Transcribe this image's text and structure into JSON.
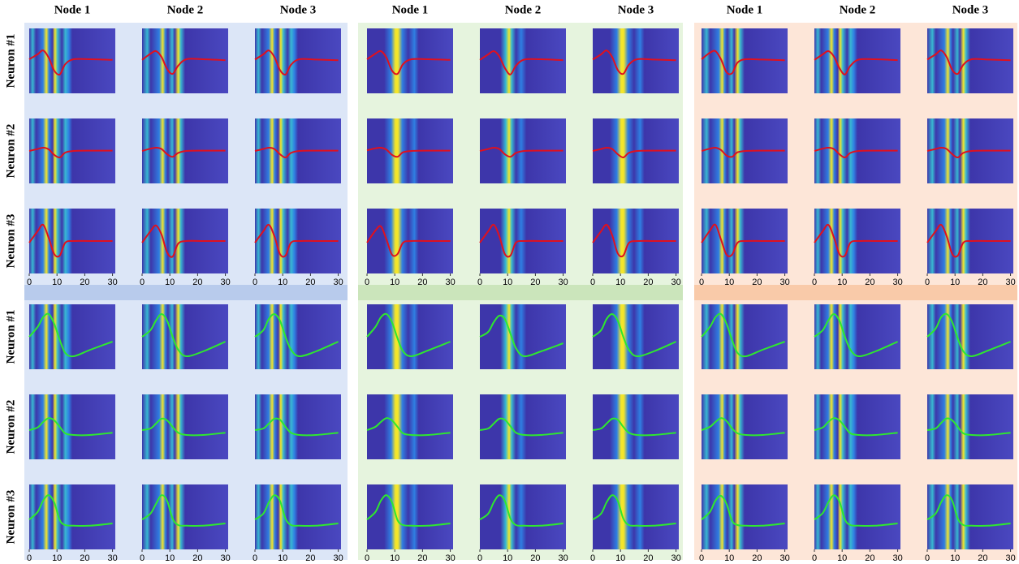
{
  "chart_data": {
    "type": "line",
    "headers": [
      "Node 1",
      "Node 2",
      "Node 3",
      "Node 1",
      "Node 2",
      "Node 3",
      "Node 1",
      "Node 2",
      "Node 3"
    ],
    "x": [
      0,
      3,
      5,
      7,
      9,
      11,
      13,
      16,
      22,
      30
    ],
    "xlim": [
      0,
      31
    ],
    "xticks": [
      0,
      10,
      20,
      30
    ],
    "ylim": [
      -1,
      1
    ],
    "blocks": [
      {
        "color": "#e0101e",
        "rows": [
          {
            "label": "Neuron #1",
            "series": [
              {
                "values": [
                  0.05,
                  0.2,
                  0.32,
                  0.1,
                  -0.3,
                  -0.42,
                  -0.1,
                  0.05,
                  0.05,
                  0.03
                ]
              },
              {
                "values": [
                  0.03,
                  0.22,
                  0.3,
                  0.12,
                  -0.25,
                  -0.4,
                  -0.15,
                  0.05,
                  0.05,
                  0.02
                ]
              },
              {
                "values": [
                  0.04,
                  0.2,
                  0.32,
                  0.12,
                  -0.28,
                  -0.42,
                  -0.12,
                  0.05,
                  0.04,
                  0.02
                ]
              },
              {
                "values": [
                  0.05,
                  0.22,
                  0.3,
                  0.1,
                  -0.3,
                  -0.4,
                  -0.1,
                  0.05,
                  0.05,
                  0.03
                ]
              },
              {
                "values": [
                  0.03,
                  0.2,
                  0.3,
                  0.14,
                  -0.22,
                  -0.42,
                  -0.15,
                  0.04,
                  0.05,
                  0.02
                ]
              },
              {
                "values": [
                  0.04,
                  0.2,
                  0.32,
                  0.12,
                  -0.28,
                  -0.4,
                  -0.12,
                  0.05,
                  0.04,
                  0.02
                ]
              },
              {
                "values": [
                  0.05,
                  0.25,
                  0.3,
                  0.05,
                  -0.35,
                  -0.38,
                  -0.05,
                  0.05,
                  0.04,
                  0.02
                ]
              },
              {
                "values": [
                  0.03,
                  0.2,
                  0.3,
                  0.14,
                  -0.22,
                  -0.42,
                  -0.15,
                  0.04,
                  0.05,
                  0.02
                ]
              },
              {
                "values": [
                  0.04,
                  0.2,
                  0.32,
                  0.12,
                  -0.28,
                  -0.4,
                  -0.12,
                  0.05,
                  0.04,
                  0.02
                ]
              }
            ]
          },
          {
            "label": "Neuron #2",
            "series": [
              {
                "values": [
                  0,
                  0.06,
                  0.1,
                  0.05,
                  -0.12,
                  -0.2,
                  -0.05,
                  0,
                  0.01,
                  0.01
                ]
              },
              {
                "values": [
                  0,
                  0.07,
                  0.1,
                  0.06,
                  -0.1,
                  -0.18,
                  -0.06,
                  0,
                  0.01,
                  0.01
                ]
              },
              {
                "values": [
                  0,
                  0.06,
                  0.1,
                  0.06,
                  -0.1,
                  -0.2,
                  -0.06,
                  0,
                  0.01,
                  0.01
                ]
              },
              {
                "values": [
                  0.02,
                  0.08,
                  0.1,
                  0.04,
                  -0.12,
                  -0.18,
                  -0.04,
                  0,
                  0.01,
                  0.01
                ]
              },
              {
                "values": [
                  0,
                  0.06,
                  0.1,
                  0.06,
                  -0.1,
                  -0.18,
                  -0.06,
                  0,
                  0.01,
                  0.01
                ]
              },
              {
                "values": [
                  0,
                  0.06,
                  0.1,
                  0.06,
                  -0.1,
                  -0.2,
                  -0.06,
                  0,
                  0.01,
                  0.01
                ]
              },
              {
                "values": [
                  0,
                  0.07,
                  0.1,
                  0.03,
                  -0.14,
                  -0.18,
                  -0.04,
                  0,
                  0.01,
                  0.01
                ]
              },
              {
                "values": [
                  0,
                  0.07,
                  0.1,
                  0.06,
                  -0.1,
                  -0.2,
                  -0.06,
                  0,
                  0.01,
                  0.01
                ]
              },
              {
                "values": [
                  0,
                  0.06,
                  0.1,
                  0.06,
                  -0.1,
                  -0.2,
                  -0.06,
                  0,
                  0.01,
                  0.01
                ]
              }
            ]
          },
          {
            "label": "Neuron #3",
            "series": [
              {
                "values": [
                  -0.05,
                  0.3,
                  0.5,
                  0.1,
                  -0.4,
                  -0.45,
                  -0.05,
                  0,
                  0,
                  0
                ]
              },
              {
                "values": [
                  -0.05,
                  0.3,
                  0.48,
                  0.2,
                  -0.35,
                  -0.48,
                  -0.08,
                  0,
                  0,
                  0
                ]
              },
              {
                "values": [
                  -0.05,
                  0.3,
                  0.5,
                  0.15,
                  -0.4,
                  -0.45,
                  -0.05,
                  0,
                  0,
                  0
                ]
              },
              {
                "values": [
                  -0.05,
                  0.32,
                  0.45,
                  0.05,
                  -0.42,
                  -0.4,
                  -0.05,
                  0,
                  0,
                  0
                ]
              },
              {
                "values": [
                  -0.05,
                  0.3,
                  0.5,
                  0.15,
                  -0.4,
                  -0.45,
                  -0.05,
                  0,
                  0,
                  0
                ]
              },
              {
                "values": [
                  -0.05,
                  0.3,
                  0.5,
                  0.18,
                  -0.38,
                  -0.45,
                  -0.06,
                  0,
                  0,
                  0
                ]
              },
              {
                "values": [
                  -0.05,
                  0.32,
                  0.5,
                  0.05,
                  -0.42,
                  -0.42,
                  -0.05,
                  0,
                  0,
                  0
                ]
              },
              {
                "values": [
                  -0.05,
                  0.3,
                  0.5,
                  0.12,
                  -0.4,
                  -0.45,
                  -0.05,
                  0,
                  0,
                  0
                ]
              },
              {
                "values": [
                  -0.05,
                  0.3,
                  0.5,
                  0.15,
                  -0.4,
                  -0.45,
                  -0.05,
                  0,
                  0,
                  0
                ]
              }
            ]
          }
        ]
      },
      {
        "color": "#2ee82e",
        "rows": [
          {
            "label": "Neuron #1",
            "series": [
              {
                "values": [
                  0,
                  0.3,
                  0.6,
                  0.7,
                  0.4,
                  -0.1,
                  -0.5,
                  -0.6,
                  -0.4,
                  -0.15
                ]
              },
              {
                "values": [
                  0,
                  0.2,
                  0.5,
                  0.7,
                  0.5,
                  0,
                  -0.4,
                  -0.6,
                  -0.45,
                  -0.15
                ]
              },
              {
                "values": [
                  0,
                  0.2,
                  0.55,
                  0.7,
                  0.5,
                  0,
                  -0.4,
                  -0.6,
                  -0.45,
                  -0.15
                ]
              },
              {
                "values": [
                  0,
                  0.3,
                  0.6,
                  0.7,
                  0.45,
                  -0.05,
                  -0.45,
                  -0.6,
                  -0.42,
                  -0.15
                ]
              },
              {
                "values": [
                  0,
                  0.15,
                  0.45,
                  0.65,
                  0.55,
                  0.1,
                  -0.35,
                  -0.6,
                  -0.45,
                  -0.2
                ]
              },
              {
                "values": [
                  0,
                  0.2,
                  0.55,
                  0.7,
                  0.5,
                  0,
                  -0.4,
                  -0.6,
                  -0.45,
                  -0.15
                ]
              },
              {
                "values": [
                  0,
                  0.3,
                  0.6,
                  0.7,
                  0.4,
                  -0.1,
                  -0.5,
                  -0.6,
                  -0.4,
                  -0.15
                ]
              },
              {
                "values": [
                  0,
                  0.2,
                  0.5,
                  0.7,
                  0.5,
                  0,
                  -0.4,
                  -0.6,
                  -0.45,
                  -0.15
                ]
              },
              {
                "values": [
                  0,
                  0.25,
                  0.6,
                  0.7,
                  0.45,
                  -0.05,
                  -0.45,
                  -0.6,
                  -0.42,
                  -0.15
                ]
              }
            ]
          },
          {
            "label": "Neuron #2",
            "series": [
              {
                "values": [
                  -0.1,
                  -0.02,
                  0.15,
                  0.27,
                  0.2,
                  0,
                  -0.2,
                  -0.25,
                  -0.25,
                  -0.18
                ]
              },
              {
                "values": [
                  -0.1,
                  -0.05,
                  0.1,
                  0.25,
                  0.2,
                  0,
                  -0.18,
                  -0.25,
                  -0.25,
                  -0.18
                ]
              },
              {
                "values": [
                  -0.1,
                  -0.05,
                  0.1,
                  0.25,
                  0.22,
                  0,
                  -0.18,
                  -0.25,
                  -0.25,
                  -0.18
                ]
              },
              {
                "values": [
                  -0.1,
                  0,
                  0.15,
                  0.27,
                  0.2,
                  0,
                  -0.2,
                  -0.25,
                  -0.25,
                  -0.18
                ]
              },
              {
                "values": [
                  -0.1,
                  -0.05,
                  0.1,
                  0.25,
                  0.22,
                  0.02,
                  -0.18,
                  -0.25,
                  -0.25,
                  -0.18
                ]
              },
              {
                "values": [
                  -0.1,
                  -0.05,
                  0.1,
                  0.25,
                  0.22,
                  0,
                  -0.18,
                  -0.25,
                  -0.25,
                  -0.18
                ]
              },
              {
                "values": [
                  -0.1,
                  0,
                  0.15,
                  0.27,
                  0.18,
                  -0.05,
                  -0.2,
                  -0.25,
                  -0.25,
                  -0.18
                ]
              },
              {
                "values": [
                  -0.1,
                  -0.02,
                  0.15,
                  0.27,
                  0.2,
                  0,
                  -0.2,
                  -0.25,
                  -0.25,
                  -0.18
                ]
              },
              {
                "values": [
                  -0.1,
                  -0.05,
                  0.12,
                  0.26,
                  0.2,
                  0,
                  -0.2,
                  -0.25,
                  -0.25,
                  -0.18
                ]
              }
            ]
          },
          {
            "label": "Neuron #3",
            "series": [
              {
                "values": [
                  -0.08,
                  0.15,
                  0.5,
                  0.67,
                  0.45,
                  -0.1,
                  -0.25,
                  -0.27,
                  -0.27,
                  -0.2
                ]
              },
              {
                "values": [
                  -0.08,
                  0.1,
                  0.4,
                  0.67,
                  0.5,
                  -0.05,
                  -0.25,
                  -0.27,
                  -0.27,
                  -0.2
                ]
              },
              {
                "values": [
                  -0.08,
                  0.1,
                  0.45,
                  0.67,
                  0.5,
                  -0.05,
                  -0.25,
                  -0.27,
                  -0.27,
                  -0.2
                ]
              },
              {
                "values": [
                  -0.08,
                  0.15,
                  0.5,
                  0.67,
                  0.45,
                  -0.1,
                  -0.25,
                  -0.27,
                  -0.27,
                  -0.2
                ]
              },
              {
                "values": [
                  -0.08,
                  0.1,
                  0.45,
                  0.67,
                  0.5,
                  -0.05,
                  -0.25,
                  -0.27,
                  -0.27,
                  -0.2
                ]
              },
              {
                "values": [
                  -0.08,
                  0.1,
                  0.45,
                  0.67,
                  0.5,
                  -0.05,
                  -0.25,
                  -0.27,
                  -0.27,
                  -0.2
                ]
              },
              {
                "values": [
                  -0.08,
                  0.15,
                  0.5,
                  0.65,
                  0.4,
                  -0.12,
                  -0.25,
                  -0.27,
                  -0.27,
                  -0.2
                ]
              },
              {
                "values": [
                  -0.08,
                  0.12,
                  0.45,
                  0.67,
                  0.48,
                  -0.08,
                  -0.25,
                  -0.27,
                  -0.27,
                  -0.2
                ]
              },
              {
                "values": [
                  -0.08,
                  0.1,
                  0.45,
                  0.67,
                  0.5,
                  -0.05,
                  -0.25,
                  -0.27,
                  -0.27,
                  -0.2
                ]
              }
            ]
          }
        ]
      }
    ]
  }
}
